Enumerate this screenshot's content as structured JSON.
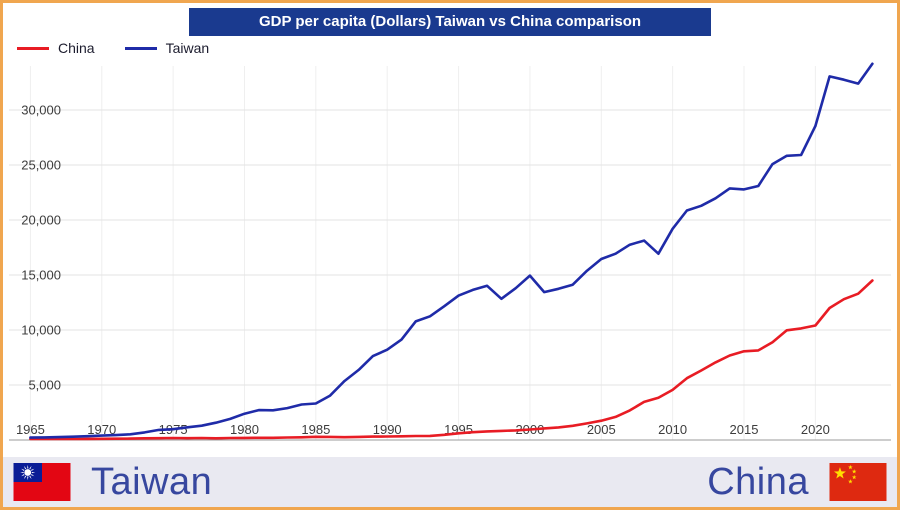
{
  "title": "GDP per capita (Dollars) Taiwan vs China comparison",
  "legend": [
    {
      "label": "China",
      "color": "#e81c24"
    },
    {
      "label": "Taiwan",
      "color": "#1f2ba8"
    }
  ],
  "footer": {
    "left_label": "Taiwan",
    "right_label": "China"
  },
  "colors": {
    "title_bg": "#1a3a8f",
    "china": "#e81c24",
    "taiwan": "#1f2ba8",
    "footer_bg": "#e9e9f1",
    "footer_text": "#37479f",
    "border": "#f0a64f",
    "grid": "#e3e3e3",
    "axis": "#9b9b9b"
  },
  "chart_data": {
    "type": "line",
    "title": "GDP per capita (Dollars) Taiwan vs China comparison",
    "xlabel": "",
    "ylabel": "",
    "grid": true,
    "legend_position": "top-left",
    "ylim": [
      0,
      36000
    ],
    "yticks": [
      5000,
      10000,
      15000,
      20000,
      25000,
      30000
    ],
    "ytick_labels": [
      "5,000",
      "10,000",
      "15,000",
      "20,000",
      "25,000",
      "30,000"
    ],
    "xticks": [
      1965,
      1970,
      1975,
      1980,
      1985,
      1990,
      1995,
      2000,
      2005,
      2010,
      2015,
      2020
    ],
    "xtick_labels": [
      "1965",
      "1970",
      "1975",
      "1980",
      "1985",
      "1990",
      "1995",
      "2000",
      "2005",
      "2010",
      "2015",
      "2020"
    ],
    "x": [
      1965,
      1966,
      1967,
      1968,
      1969,
      1970,
      1971,
      1972,
      1973,
      1974,
      1975,
      1976,
      1977,
      1978,
      1979,
      1980,
      1981,
      1982,
      1983,
      1984,
      1985,
      1986,
      1987,
      1988,
      1989,
      1990,
      1991,
      1992,
      1993,
      1994,
      1995,
      1996,
      1997,
      1998,
      1999,
      2000,
      2001,
      2002,
      2003,
      2004,
      2005,
      2006,
      2007,
      2008,
      2009,
      2010,
      2011,
      2012,
      2013,
      2014,
      2015,
      2016,
      2017,
      2018,
      2019,
      2020,
      2021,
      2022,
      2023,
      2024
    ],
    "series": [
      {
        "name": "China",
        "color": "#e81c24",
        "values": [
          98,
          104,
          96,
          91,
          100,
          113,
          118,
          131,
          157,
          160,
          178,
          165,
          185,
          156,
          184,
          195,
          197,
          203,
          225,
          250,
          294,
          281,
          251,
          283,
          310,
          318,
          333,
          366,
          377,
          473,
          610,
          709,
          781,
          828,
          873,
          959,
          1053,
          1148,
          1288,
          1508,
          1753,
          2099,
          2694,
          3468,
          3832,
          4550,
          5618,
          6317,
          7051,
          7679,
          8067,
          8148,
          8879,
          9977,
          10144,
          10409,
          12000,
          12800,
          13300,
          14500
        ]
      },
      {
        "name": "Taiwan",
        "color": "#1f2ba8",
        "values": [
          217,
          237,
          267,
          304,
          345,
          397,
          450,
          522,
          695,
          920,
          985,
          1158,
          1301,
          1577,
          1920,
          2389,
          2720,
          2699,
          2903,
          3224,
          3315,
          4036,
          5350,
          6370,
          7626,
          8205,
          9125,
          10778,
          11250,
          12160,
          13129,
          13650,
          14020,
          12840,
          13804,
          14941,
          13448,
          13750,
          14120,
          15388,
          16456,
          16934,
          17757,
          18131,
          16933,
          19197,
          20866,
          21295,
          21973,
          22874,
          22780,
          23091,
          25080,
          25838,
          25908,
          28549,
          33059,
          32756,
          32404,
          34200
        ]
      }
    ]
  }
}
